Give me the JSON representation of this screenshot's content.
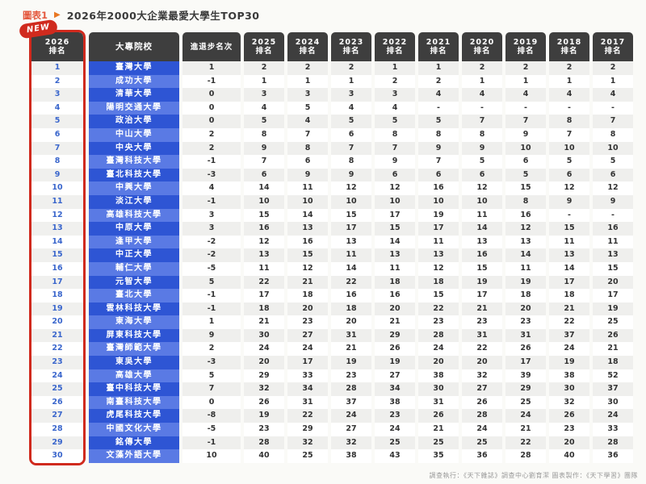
{
  "figure_label": "圖表1",
  "arrow_icon": "▶",
  "title": "2026年2000大企業最愛大學生TOP30",
  "new_badge": "NEW",
  "source_note": "調查執行：《天下雜誌》調查中心劉育潔 圖表製作：《天下學習》團隊",
  "colors": {
    "accent_red": "#d02a1e",
    "header_dark": "#3e3e3e",
    "row_blue_dark": "#2e55d4",
    "row_blue_light": "#5a7ae4",
    "rank_text_blue": "#3a66cc",
    "row_gray": "#efefed",
    "title_red": "#e4593f",
    "arrow_orange": "#e87722"
  },
  "chart_data": {
    "type": "table",
    "title": "2026年2000大企業最愛大學生TOP30",
    "rank_header_year": "2026",
    "rank_header_label": "排名",
    "university_header": "大專院校",
    "change_header": "進退步名次",
    "year_headers": [
      "2025",
      "2024",
      "2023",
      "2022",
      "2021",
      "2020",
      "2019",
      "2018",
      "2017"
    ],
    "year_header_label": "排名",
    "columns": [
      "2026排名",
      "大專院校",
      "進退步名次",
      "2025排名",
      "2024排名",
      "2023排名",
      "2022排名",
      "2021排名",
      "2020排名",
      "2019排名",
      "2018排名",
      "2017排名"
    ],
    "rows": [
      {
        "rank": "1",
        "university": "臺灣大學",
        "change": "1",
        "years": [
          "2",
          "2",
          "2",
          "1",
          "1",
          "2",
          "2",
          "2",
          "2"
        ]
      },
      {
        "rank": "2",
        "university": "成功大學",
        "change": "-1",
        "years": [
          "1",
          "1",
          "1",
          "2",
          "2",
          "1",
          "1",
          "1",
          "1"
        ]
      },
      {
        "rank": "3",
        "university": "清華大學",
        "change": "0",
        "years": [
          "3",
          "3",
          "3",
          "3",
          "4",
          "4",
          "4",
          "4",
          "4"
        ]
      },
      {
        "rank": "4",
        "university": "陽明交通大學",
        "change": "0",
        "years": [
          "4",
          "5",
          "4",
          "4",
          "-",
          "-",
          "-",
          "-",
          "-"
        ]
      },
      {
        "rank": "5",
        "university": "政治大學",
        "change": "0",
        "years": [
          "5",
          "4",
          "5",
          "5",
          "5",
          "7",
          "7",
          "8",
          "7"
        ]
      },
      {
        "rank": "6",
        "university": "中山大學",
        "change": "2",
        "years": [
          "8",
          "7",
          "6",
          "8",
          "8",
          "8",
          "9",
          "7",
          "8"
        ]
      },
      {
        "rank": "7",
        "university": "中央大學",
        "change": "2",
        "years": [
          "9",
          "8",
          "7",
          "7",
          "9",
          "9",
          "10",
          "10",
          "10"
        ]
      },
      {
        "rank": "8",
        "university": "臺灣科技大學",
        "change": "-1",
        "years": [
          "7",
          "6",
          "8",
          "9",
          "7",
          "5",
          "6",
          "5",
          "5"
        ]
      },
      {
        "rank": "9",
        "university": "臺北科技大學",
        "change": "-3",
        "years": [
          "6",
          "9",
          "9",
          "6",
          "6",
          "6",
          "5",
          "6",
          "6"
        ]
      },
      {
        "rank": "10",
        "university": "中興大學",
        "change": "4",
        "years": [
          "14",
          "11",
          "12",
          "12",
          "16",
          "12",
          "15",
          "12",
          "12"
        ]
      },
      {
        "rank": "11",
        "university": "淡江大學",
        "change": "-1",
        "years": [
          "10",
          "10",
          "10",
          "10",
          "10",
          "10",
          "8",
          "9",
          "9"
        ]
      },
      {
        "rank": "12",
        "university": "高雄科技大學",
        "change": "3",
        "years": [
          "15",
          "14",
          "15",
          "17",
          "19",
          "11",
          "16",
          "-",
          "-"
        ]
      },
      {
        "rank": "13",
        "university": "中原大學",
        "change": "3",
        "years": [
          "16",
          "13",
          "17",
          "15",
          "17",
          "14",
          "12",
          "15",
          "16"
        ]
      },
      {
        "rank": "14",
        "university": "逢甲大學",
        "change": "-2",
        "years": [
          "12",
          "16",
          "13",
          "14",
          "11",
          "13",
          "13",
          "11",
          "11"
        ]
      },
      {
        "rank": "15",
        "university": "中正大學",
        "change": "-2",
        "years": [
          "13",
          "15",
          "11",
          "13",
          "13",
          "16",
          "14",
          "13",
          "13"
        ]
      },
      {
        "rank": "16",
        "university": "輔仁大學",
        "change": "-5",
        "years": [
          "11",
          "12",
          "14",
          "11",
          "12",
          "15",
          "11",
          "14",
          "15"
        ]
      },
      {
        "rank": "17",
        "university": "元智大學",
        "change": "5",
        "years": [
          "22",
          "21",
          "22",
          "18",
          "18",
          "19",
          "19",
          "17",
          "20"
        ]
      },
      {
        "rank": "18",
        "university": "臺北大學",
        "change": "-1",
        "years": [
          "17",
          "18",
          "16",
          "16",
          "15",
          "17",
          "18",
          "18",
          "17"
        ]
      },
      {
        "rank": "19",
        "university": "雲林科技大學",
        "change": "-1",
        "years": [
          "18",
          "20",
          "18",
          "20",
          "22",
          "21",
          "20",
          "21",
          "19"
        ]
      },
      {
        "rank": "20",
        "university": "東海大學",
        "change": "1",
        "years": [
          "21",
          "23",
          "20",
          "21",
          "23",
          "23",
          "23",
          "22",
          "25"
        ]
      },
      {
        "rank": "21",
        "university": "屏東科技大學",
        "change": "9",
        "years": [
          "30",
          "27",
          "31",
          "29",
          "28",
          "31",
          "31",
          "37",
          "26"
        ]
      },
      {
        "rank": "22",
        "university": "臺灣師範大學",
        "change": "2",
        "years": [
          "24",
          "24",
          "21",
          "26",
          "24",
          "22",
          "26",
          "24",
          "21"
        ]
      },
      {
        "rank": "23",
        "university": "東吳大學",
        "change": "-3",
        "years": [
          "20",
          "17",
          "19",
          "19",
          "20",
          "20",
          "17",
          "19",
          "18"
        ]
      },
      {
        "rank": "24",
        "university": "高雄大學",
        "change": "5",
        "years": [
          "29",
          "33",
          "23",
          "27",
          "38",
          "32",
          "39",
          "38",
          "52"
        ]
      },
      {
        "rank": "25",
        "university": "臺中科技大學",
        "change": "7",
        "years": [
          "32",
          "34",
          "28",
          "34",
          "30",
          "27",
          "29",
          "30",
          "37"
        ]
      },
      {
        "rank": "26",
        "university": "南臺科技大學",
        "change": "0",
        "years": [
          "26",
          "31",
          "37",
          "38",
          "31",
          "26",
          "25",
          "32",
          "30"
        ]
      },
      {
        "rank": "27",
        "university": "虎尾科技大學",
        "change": "-8",
        "years": [
          "19",
          "22",
          "24",
          "23",
          "26",
          "28",
          "24",
          "26",
          "24"
        ]
      },
      {
        "rank": "28",
        "university": "中國文化大學",
        "change": "-5",
        "years": [
          "23",
          "29",
          "27",
          "24",
          "21",
          "24",
          "21",
          "23",
          "33"
        ]
      },
      {
        "rank": "29",
        "university": "銘傳大學",
        "change": "-1",
        "years": [
          "28",
          "32",
          "32",
          "25",
          "25",
          "25",
          "22",
          "20",
          "28"
        ]
      },
      {
        "rank": "30",
        "university": "文藻外語大學",
        "change": "10",
        "years": [
          "40",
          "25",
          "38",
          "43",
          "35",
          "36",
          "28",
          "40",
          "36"
        ]
      }
    ]
  }
}
